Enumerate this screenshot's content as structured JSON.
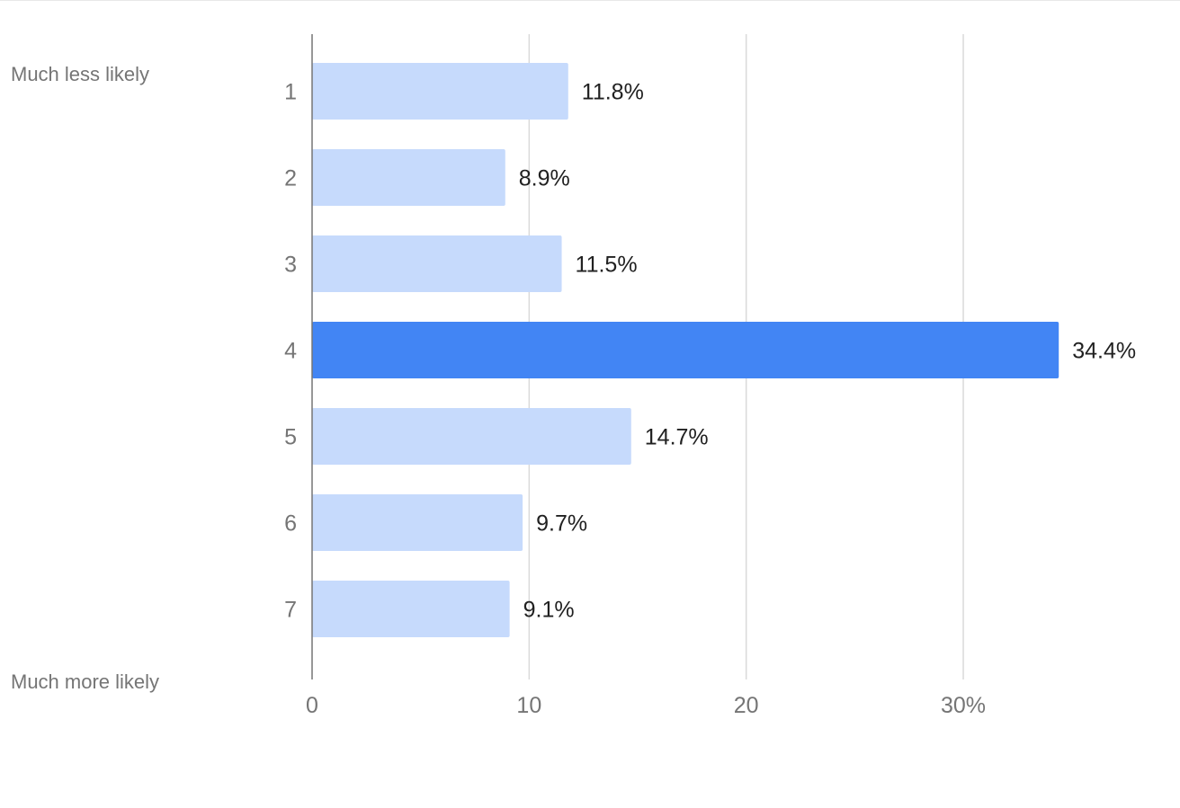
{
  "scale_labels": {
    "low": "Much less likely",
    "high": "Much more likely"
  },
  "chart_data": {
    "type": "bar",
    "orientation": "horizontal",
    "categories": [
      "1",
      "2",
      "3",
      "4",
      "5",
      "6",
      "7"
    ],
    "values": [
      11.8,
      8.9,
      11.5,
      34.4,
      14.7,
      9.7,
      9.1
    ],
    "data_labels": [
      "11.8%",
      "8.9%",
      "11.5%",
      "34.4%",
      "14.7%",
      "9.7%",
      "9.1%"
    ],
    "x_ticks": [
      0,
      10,
      20,
      30
    ],
    "x_tick_labels": [
      "0",
      "10",
      "20",
      "30%"
    ],
    "xlim": [
      0,
      35.8
    ],
    "grid": true,
    "highlight_index": 3,
    "colors": {
      "bar": "#c6dafc",
      "highlight": "#4285f4",
      "grid": "#dadada",
      "axis": "#757575"
    }
  }
}
